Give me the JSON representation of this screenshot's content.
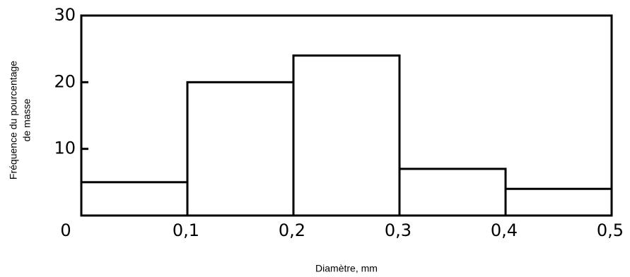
{
  "chart_data": {
    "type": "histogram",
    "xlabel": "Diamètre, mm",
    "ylabel": [
      "Fréquence du pourcentage",
      "de masse"
    ],
    "bins": [
      0,
      0.1,
      0.2,
      0.3,
      0.4,
      0.5
    ],
    "values": [
      5,
      20,
      24,
      7,
      4
    ],
    "color": "#ffffff",
    "xlim": [
      0,
      0.5
    ],
    "xticks": [
      0,
      {
        "value": 0.1,
        "label": "0,1"
      },
      {
        "value": 0.2,
        "label": "0,2"
      },
      {
        "value": 0.3,
        "label": "0,3"
      },
      {
        "value": 0.4,
        "label": "0,4"
      },
      {
        "value": 0.5,
        "label": "0,5"
      }
    ],
    "ylim": [
      0,
      30
    ],
    "yticks": [
      10,
      20,
      30
    ]
  }
}
